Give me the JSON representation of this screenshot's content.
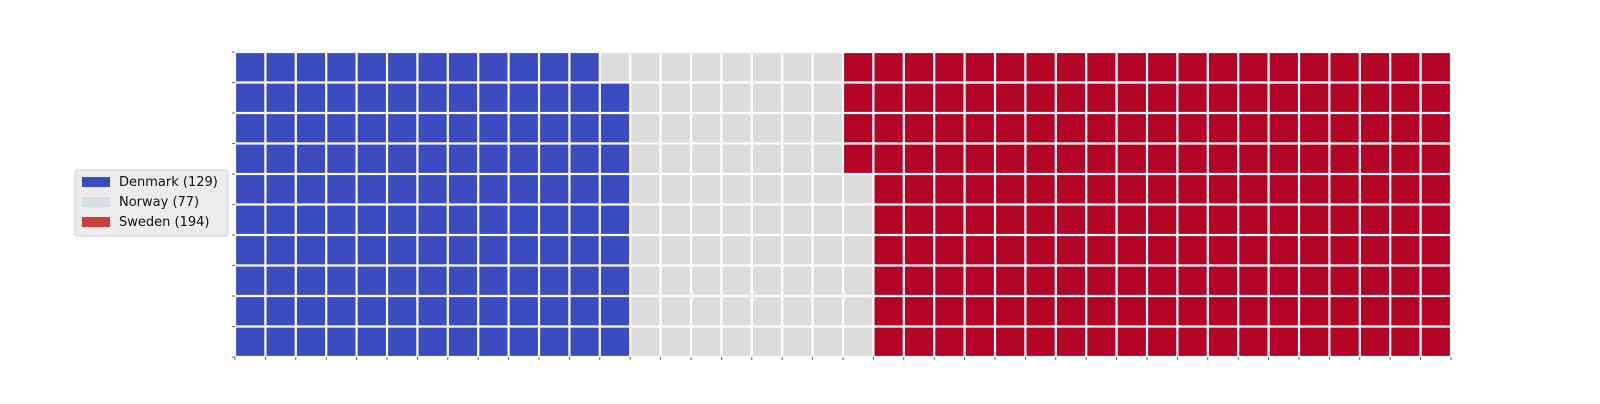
{
  "chart_data": {
    "type": "waffle",
    "rows": 10,
    "columns": 40,
    "fill_order": "column-major, bottom-to-top within each column, left-to-right",
    "grid": false,
    "legend_placement": "left",
    "series": [
      {
        "name": "Denmark",
        "value": 129,
        "label": "Denmark (129)",
        "color": "#3b4cc0"
      },
      {
        "name": "Norway",
        "value": 77,
        "label": "Norway (77)",
        "color": "#dddcdc"
      },
      {
        "name": "Sweden",
        "value": 194,
        "label": "Sweden (194)",
        "color": "#b40426"
      }
    ],
    "legend_patch_colors": [
      "#3b4cc0",
      "#d6dde5",
      "#c9413c"
    ]
  }
}
